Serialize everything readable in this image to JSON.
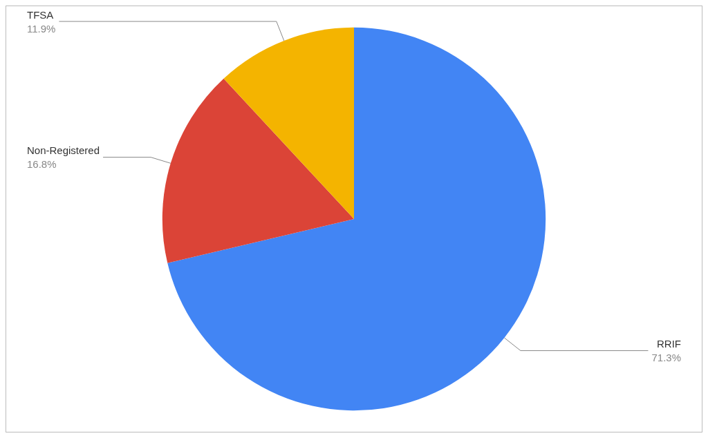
{
  "chart_data": {
    "type": "pie",
    "categories": [
      "RRIF",
      "Non-Registered",
      "TFSA"
    ],
    "values": [
      71.3,
      16.8,
      11.9
    ],
    "colors": [
      "#4285f4",
      "#db4437",
      "#f4b400"
    ],
    "value_labels": [
      "71.3%",
      "16.8%",
      "11.9%"
    ],
    "legend": false
  }
}
